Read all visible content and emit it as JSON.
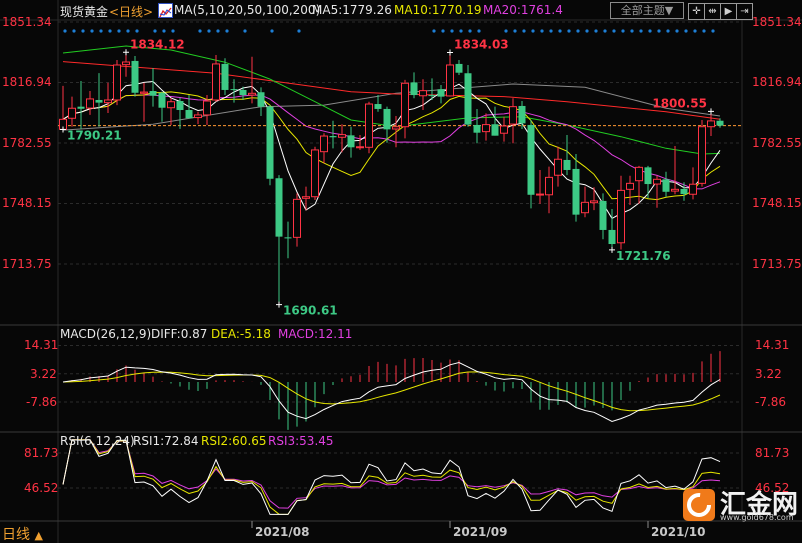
{
  "header": {
    "instrument": "现货黄金",
    "period": "<日线>",
    "ma_label": "MA(5,10,20,50,100,200)",
    "ma5": "MA5:1779.26",
    "ma10": "MA10:1770.19",
    "ma20": "MA20:1761.4",
    "theme_button": "全部主题▼",
    "icons": [
      "crosshair-icon",
      "zoom-range-icon",
      "play-icon",
      "move-right-icon"
    ]
  },
  "macd_header": {
    "label": "MACD(26,12,9)",
    "diff": "DIFF:0.87",
    "dea": "DEA:-5.18",
    "macd": "MACD:12.11"
  },
  "rsi_header": {
    "label": "RSI(6,12,24)",
    "rsi1": "RSI1:72.84",
    "rsi2": "RSI2:60.65",
    "rsi3": "RSI3:53.45"
  },
  "footer": {
    "period_button": "日线",
    "period_arrow": "▲"
  },
  "watermark": {
    "name": "汇金网",
    "url": "www.gold678.com"
  },
  "colors": {
    "up": "#ff3344",
    "down": "#3dc985",
    "ma5": "#ffffff",
    "ma10": "#e6e600",
    "ma20": "#e040e0",
    "ma50": "#22cc22",
    "ma100": "#8a8a8a",
    "ma200": "#ff2a2a",
    "last_price_line": "#ff9933",
    "signal_dots": "#1e7fd6",
    "brand": "#f07a1a"
  },
  "chart_data": [
    {
      "type": "candlestick",
      "title": "现货黄金 <日线>",
      "price_axis_ticks": [
        1851.34,
        1816.94,
        1782.55,
        1748.15,
        1713.75
      ],
      "price_axis_labels": [
        "1851.34",
        "1816.94",
        "1782.55",
        "1748.15",
        "1713.75"
      ],
      "x_tick_labels": [
        {
          "label": "2021/08",
          "candle": 22
        },
        {
          "label": "2021/09",
          "candle": 44
        },
        {
          "label": "2021/10",
          "candle": 66
        }
      ],
      "ohlc": [
        [
          1790.3,
          1815.0,
          1790.21,
          1796.0
        ],
        [
          1796.6,
          1808.9,
          1791.8,
          1802.3
        ],
        [
          1803.2,
          1817.8,
          1790.4,
          1802.0
        ],
        [
          1802.4,
          1812.1,
          1798.5,
          1807.6
        ],
        [
          1807.0,
          1822.3,
          1791.8,
          1805.5
        ],
        [
          1805.5,
          1816.8,
          1799.6,
          1807.0
        ],
        [
          1807.0,
          1829.7,
          1804.1,
          1826.9
        ],
        [
          1827.1,
          1834.12,
          1820.2,
          1828.6
        ],
        [
          1829.2,
          1832.0,
          1808.9,
          1811.1
        ],
        [
          1810.8,
          1816.7,
          1794.6,
          1811.5
        ],
        [
          1812.1,
          1825.2,
          1803.2,
          1809.4
        ],
        [
          1811.1,
          1811.7,
          1794.6,
          1802.6
        ],
        [
          1802.6,
          1808.1,
          1792.8,
          1806.0
        ],
        [
          1806.4,
          1808.1,
          1790.6,
          1801.3
        ],
        [
          1801.3,
          1809.8,
          1796.6,
          1796.6
        ],
        [
          1797.0,
          1800.3,
          1793.3,
          1798.5
        ],
        [
          1798.5,
          1809.8,
          1792.8,
          1806.4
        ],
        [
          1807.0,
          1832.6,
          1806.0,
          1827.5
        ],
        [
          1827.5,
          1830.7,
          1809.8,
          1812.7
        ],
        [
          1813.2,
          1818.8,
          1805.5,
          1812.7
        ],
        [
          1812.7,
          1814.6,
          1807.0,
          1809.8
        ],
        [
          1809.8,
          1831.6,
          1805.1,
          1810.8
        ],
        [
          1811.4,
          1814.2,
          1797.9,
          1803.2
        ],
        [
          1803.2,
          1804.1,
          1758.5,
          1762.2
        ],
        [
          1762.5,
          1764.3,
          1690.61,
          1729.3
        ],
        [
          1728.9,
          1737.8,
          1717.0,
          1728.3
        ],
        [
          1728.9,
          1753.9,
          1723.6,
          1750.5
        ],
        [
          1751.1,
          1757.7,
          1744.4,
          1752.0
        ],
        [
          1752.0,
          1780.4,
          1750.1,
          1778.6
        ],
        [
          1777.6,
          1788.1,
          1771.0,
          1786.5
        ],
        [
          1786.5,
          1795.2,
          1779.5,
          1785.8
        ],
        [
          1785.8,
          1793.2,
          1777.3,
          1787.3
        ],
        [
          1786.9,
          1791.8,
          1774.2,
          1780.1
        ],
        [
          1779.9,
          1787.1,
          1778.6,
          1780.4
        ],
        [
          1780.1,
          1806.0,
          1776.7,
          1804.7
        ],
        [
          1804.7,
          1809.8,
          1800.3,
          1801.9
        ],
        [
          1801.9,
          1803.2,
          1782.7,
          1790.3
        ],
        [
          1790.5,
          1797.9,
          1780.1,
          1791.8
        ],
        [
          1791.8,
          1818.4,
          1785.2,
          1816.5
        ],
        [
          1817.0,
          1822.7,
          1808.0,
          1809.8
        ],
        [
          1809.4,
          1818.8,
          1801.3,
          1812.3
        ],
        [
          1809.8,
          1819.3,
          1807.0,
          1809.4
        ],
        [
          1813.1,
          1815.5,
          1805.1,
          1808.9
        ],
        [
          1809.3,
          1834.03,
          1808.9,
          1826.9
        ],
        [
          1827.5,
          1829.7,
          1821.2,
          1822.5
        ],
        [
          1822.2,
          1826.9,
          1791.8,
          1793.0
        ],
        [
          1792.8,
          1801.9,
          1782.4,
          1788.4
        ],
        [
          1789.0,
          1799.4,
          1783.9,
          1793.0
        ],
        [
          1793.2,
          1803.2,
          1786.7,
          1786.7
        ],
        [
          1788.1,
          1797.5,
          1783.3,
          1792.2
        ],
        [
          1793.3,
          1808.0,
          1782.4,
          1803.2
        ],
        [
          1803.6,
          1806.4,
          1790.5,
          1793.7
        ],
        [
          1792.8,
          1795.6,
          1745.4,
          1753.1
        ],
        [
          1753.0,
          1767.2,
          1747.9,
          1753.5
        ],
        [
          1753.1,
          1769.1,
          1742.6,
          1763.0
        ],
        [
          1764.2,
          1780.4,
          1757.7,
          1773.3
        ],
        [
          1772.9,
          1787.1,
          1764.3,
          1767.2
        ],
        [
          1767.8,
          1776.3,
          1737.8,
          1741.8
        ],
        [
          1742.9,
          1757.7,
          1740.3,
          1748.8
        ],
        [
          1748.6,
          1757.4,
          1744.4,
          1749.6
        ],
        [
          1749.6,
          1753.9,
          1727.8,
          1733.1
        ],
        [
          1733.1,
          1745.0,
          1721.76,
          1725.1
        ],
        [
          1725.8,
          1763.9,
          1722.0,
          1755.6
        ],
        [
          1756.2,
          1763.9,
          1747.3,
          1759.6
        ],
        [
          1761.1,
          1769.5,
          1747.9,
          1768.7
        ],
        [
          1768.7,
          1769.5,
          1751.1,
          1759.2
        ],
        [
          1759.2,
          1763.9,
          1745.7,
          1761.9
        ],
        [
          1761.9,
          1766.2,
          1752.0,
          1754.8
        ],
        [
          1755.2,
          1780.8,
          1753.4,
          1756.2
        ],
        [
          1756.4,
          1760.2,
          1749.7,
          1753.5
        ],
        [
          1753.4,
          1768.7,
          1750.5,
          1759.1
        ],
        [
          1759.6,
          1795.6,
          1757.7,
          1791.8
        ],
        [
          1791.8,
          1800.55,
          1786.5,
          1795.1
        ],
        [
          1795.2,
          1796.6,
          1791.2,
          1792.4
        ]
      ],
      "annotations": [
        {
          "text": "1834.12",
          "candle": 8,
          "kind": "high",
          "color": "#ff3344"
        },
        {
          "text": "1790.21",
          "candle": 1,
          "kind": "low",
          "color": "#3dc985"
        },
        {
          "text": "1690.61",
          "candle": 25,
          "kind": "low",
          "color": "#3dc985"
        },
        {
          "text": "1834.03",
          "candle": 44,
          "kind": "high",
          "color": "#ff3344"
        },
        {
          "text": "1721.76",
          "candle": 62,
          "kind": "low",
          "color": "#3dc985"
        },
        {
          "text": "1800.55",
          "candle": 73,
          "kind": "high-left",
          "color": "#ff3344"
        }
      ],
      "ma_long": {
        "ma50": [
          [
            1,
            1833.7
          ],
          [
            8,
            1837.7
          ],
          [
            13,
            1835.4
          ],
          [
            19,
            1828.5
          ],
          [
            24,
            1818.9
          ],
          [
            29,
            1806.0
          ],
          [
            33,
            1795.6
          ],
          [
            38,
            1791.8
          ],
          [
            46,
            1796.8
          ],
          [
            52,
            1797.5
          ],
          [
            57,
            1792.8
          ],
          [
            63,
            1786.1
          ],
          [
            68,
            1779.5
          ],
          [
            72,
            1776.3
          ],
          [
            74,
            1776.6
          ]
        ],
        "ma100": [
          [
            1,
            1789.9
          ],
          [
            11,
            1793.2
          ],
          [
            23,
            1803.2
          ],
          [
            30,
            1804.1
          ],
          [
            38,
            1810.8
          ],
          [
            51,
            1816.1
          ],
          [
            59,
            1814.2
          ],
          [
            68,
            1802.3
          ],
          [
            74,
            1797.9
          ]
        ],
        "ma200": [
          [
            1,
            1828.8
          ],
          [
            18,
            1822.2
          ],
          [
            24,
            1818.0
          ],
          [
            33,
            1811.7
          ],
          [
            38,
            1810.4
          ],
          [
            50,
            1808.9
          ],
          [
            57,
            1806.0
          ],
          [
            68,
            1800.3
          ],
          [
            74,
            1796.0
          ]
        ]
      },
      "signal_dots": [
        1,
        2,
        3,
        4,
        5,
        6,
        7,
        8,
        9,
        11,
        12,
        13,
        16,
        17,
        18,
        19,
        21,
        24,
        27,
        42,
        43,
        44,
        45,
        46,
        47,
        50,
        51,
        52,
        53,
        54,
        55,
        56,
        57,
        58,
        59,
        60,
        61,
        62,
        63,
        64,
        65,
        66,
        67,
        68,
        69,
        70,
        71,
        72,
        73
      ]
    },
    {
      "type": "macd",
      "axis_labels": [
        "14.31",
        "3.22",
        "-7.86"
      ],
      "axis_ticks": [
        14.31,
        3.22,
        -7.86
      ]
    },
    {
      "type": "rsi",
      "axis_labels": [
        "81.73",
        "46.52"
      ],
      "axis_ticks": [
        81.73,
        46.52
      ]
    }
  ]
}
